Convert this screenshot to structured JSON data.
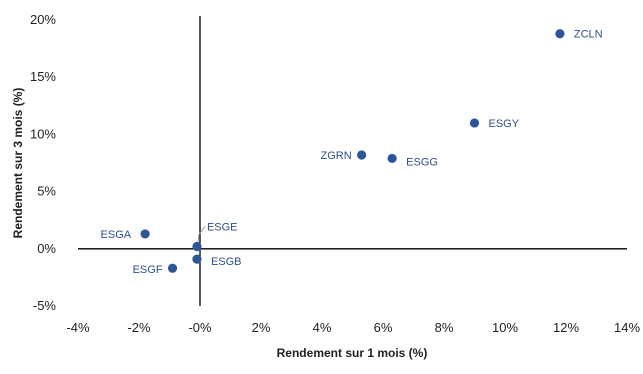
{
  "chart_data": {
    "type": "scatter",
    "title": "",
    "xlabel": "Rendement sur 1 mois (%)",
    "ylabel": "Rendement sur 3 mois (%)",
    "xlim": [
      -4,
      14
    ],
    "ylim": [
      -5,
      20
    ],
    "x_ticks": [
      -4,
      -2,
      0,
      2,
      4,
      6,
      8,
      10,
      12,
      14
    ],
    "y_ticks": [
      -5,
      0,
      5,
      10,
      15,
      20
    ],
    "x_tick_labels": [
      "-4%",
      "-2%",
      "-0%",
      "2%",
      "4%",
      "6%",
      "8%",
      "10%",
      "12%",
      "14%"
    ],
    "y_tick_labels": [
      "-5%",
      "0%",
      "5%",
      "10%",
      "15%",
      "20%"
    ],
    "grid": false,
    "marker_color": "#2e5597",
    "label_color": "#2f4f86",
    "points": [
      {
        "label": "ZCLN",
        "x": 11.8,
        "y": 18.8
      },
      {
        "label": "ESGY",
        "x": 9.0,
        "y": 11.0
      },
      {
        "label": "ZGRN",
        "x": 5.3,
        "y": 8.2
      },
      {
        "label": "ESGG",
        "x": 6.3,
        "y": 7.9
      },
      {
        "label": "ESGA",
        "x": -1.8,
        "y": 1.3
      },
      {
        "label": "ESGE",
        "x": -0.1,
        "y": 0.2
      },
      {
        "label": "ESGB",
        "x": -0.1,
        "y": -0.9
      },
      {
        "label": "ESGF",
        "x": -0.9,
        "y": -1.7
      }
    ]
  }
}
